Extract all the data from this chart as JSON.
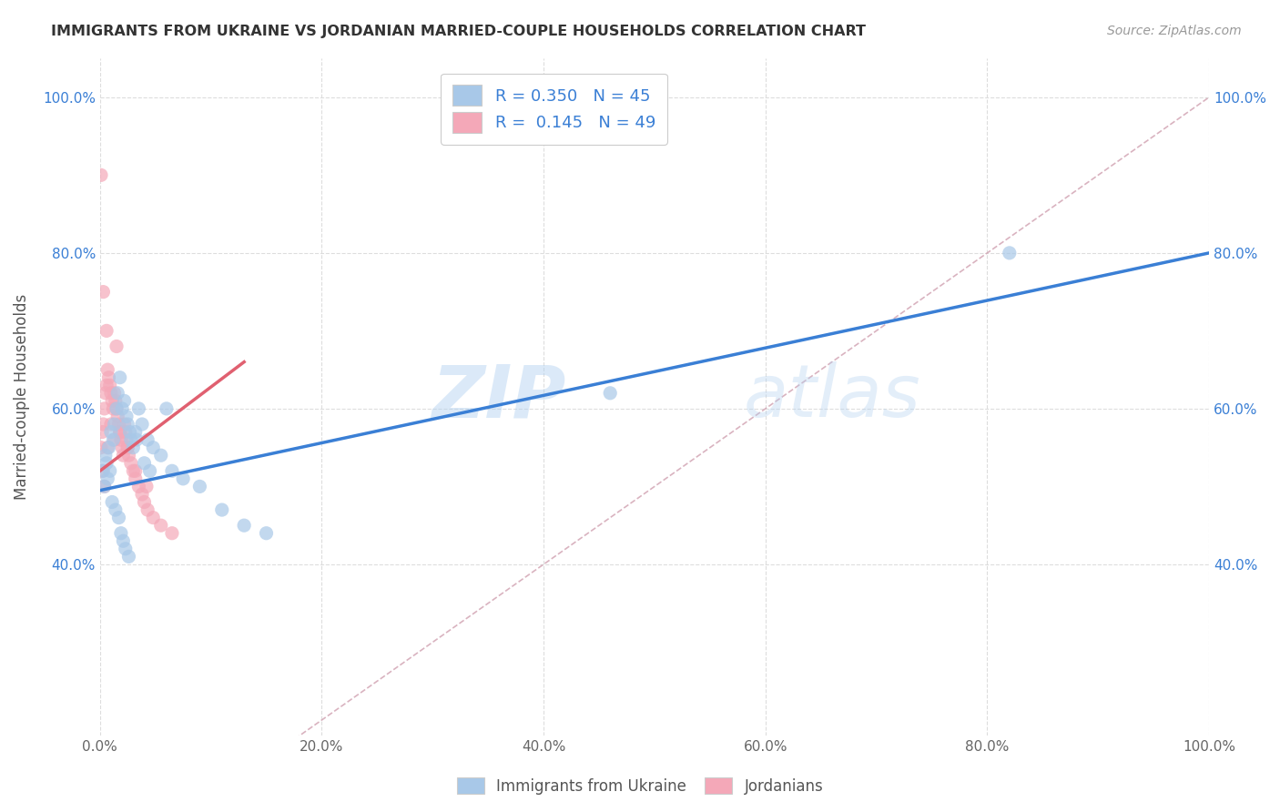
{
  "title": "IMMIGRANTS FROM UKRAINE VS JORDANIAN MARRIED-COUPLE HOUSEHOLDS CORRELATION CHART",
  "source": "Source: ZipAtlas.com",
  "ylabel": "Married-couple Households",
  "xlim": [
    0,
    1.0
  ],
  "ylim": [
    0.18,
    1.05
  ],
  "ukraine_R": "0.350",
  "ukraine_N": "45",
  "jordan_R": "0.145",
  "jordan_N": "49",
  "ukraine_color": "#a8c8e8",
  "jordan_color": "#f4a8b8",
  "ukraine_line_color": "#3a7fd5",
  "jordan_line_color": "#e06070",
  "diagonal_color": "#d0a0b0",
  "background_color": "#ffffff",
  "grid_color": "#dddddd",
  "legend_color": "#3a7fd5",
  "watermark_zip": "ZIP",
  "watermark_atlas": "atlas",
  "ukraine_scatter_x": [
    0.003,
    0.005,
    0.006,
    0.008,
    0.01,
    0.012,
    0.013,
    0.015,
    0.016,
    0.018,
    0.02,
    0.022,
    0.024,
    0.025,
    0.027,
    0.028,
    0.03,
    0.032,
    0.035,
    0.038,
    0.04,
    0.043,
    0.048,
    0.055,
    0.065,
    0.075,
    0.09,
    0.11,
    0.13,
    0.15,
    0.004,
    0.007,
    0.009,
    0.011,
    0.014,
    0.017,
    0.019,
    0.021,
    0.023,
    0.026,
    0.033,
    0.045,
    0.06,
    0.82,
    0.46
  ],
  "ukraine_scatter_y": [
    0.52,
    0.54,
    0.53,
    0.55,
    0.57,
    0.56,
    0.58,
    0.6,
    0.62,
    0.64,
    0.6,
    0.61,
    0.59,
    0.58,
    0.57,
    0.56,
    0.55,
    0.57,
    0.6,
    0.58,
    0.53,
    0.56,
    0.55,
    0.54,
    0.52,
    0.51,
    0.5,
    0.47,
    0.45,
    0.44,
    0.5,
    0.51,
    0.52,
    0.48,
    0.47,
    0.46,
    0.44,
    0.43,
    0.42,
    0.41,
    0.56,
    0.52,
    0.6,
    0.8,
    0.62
  ],
  "jordan_scatter_x": [
    0.001,
    0.002,
    0.003,
    0.004,
    0.005,
    0.006,
    0.007,
    0.008,
    0.009,
    0.01,
    0.011,
    0.012,
    0.013,
    0.014,
    0.015,
    0.016,
    0.017,
    0.018,
    0.019,
    0.02,
    0.021,
    0.022,
    0.023,
    0.024,
    0.025,
    0.026,
    0.028,
    0.03,
    0.032,
    0.035,
    0.038,
    0.04,
    0.043,
    0.048,
    0.055,
    0.065,
    0.002,
    0.004,
    0.007,
    0.01,
    0.013,
    0.018,
    0.025,
    0.032,
    0.042,
    0.001,
    0.003,
    0.006,
    0.015
  ],
  "jordan_scatter_y": [
    0.55,
    0.57,
    0.58,
    0.6,
    0.62,
    0.63,
    0.65,
    0.64,
    0.63,
    0.62,
    0.61,
    0.6,
    0.62,
    0.61,
    0.6,
    0.59,
    0.58,
    0.57,
    0.56,
    0.55,
    0.54,
    0.58,
    0.57,
    0.56,
    0.55,
    0.54,
    0.53,
    0.52,
    0.51,
    0.5,
    0.49,
    0.48,
    0.47,
    0.46,
    0.45,
    0.44,
    0.52,
    0.5,
    0.55,
    0.58,
    0.56,
    0.57,
    0.55,
    0.52,
    0.5,
    0.9,
    0.75,
    0.7,
    0.68
  ],
  "ukraine_line_x0": 0.0,
  "ukraine_line_y0": 0.495,
  "ukraine_line_x1": 1.0,
  "ukraine_line_y1": 0.8,
  "jordan_line_x0": 0.0,
  "jordan_line_y0": 0.52,
  "jordan_line_x1": 0.13,
  "jordan_line_y1": 0.66
}
